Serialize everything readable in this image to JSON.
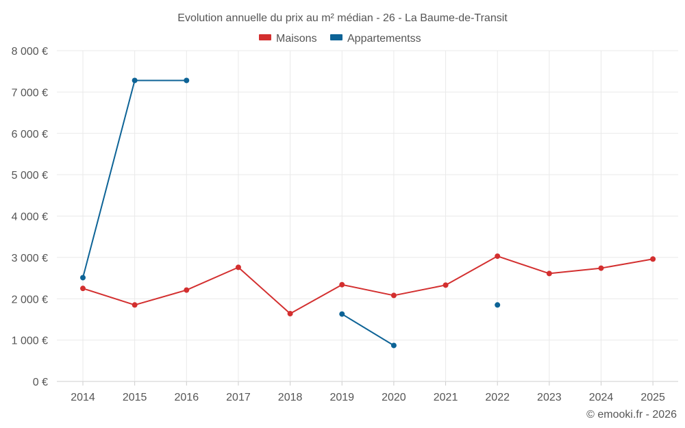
{
  "chart_data": {
    "type": "line",
    "title": "Evolution annuelle du prix au m² médian - 26 - La Baume-de-Transit",
    "categories": [
      "2014",
      "2015",
      "2016",
      "2017",
      "2018",
      "2019",
      "2020",
      "2021",
      "2022",
      "2023",
      "2024",
      "2025"
    ],
    "ylim": [
      0,
      8000
    ],
    "yticks": [
      0,
      1000,
      2000,
      3000,
      4000,
      5000,
      6000,
      7000,
      8000
    ],
    "ytick_labels": [
      "0 €",
      "1 000 €",
      "2 000 €",
      "3 000 €",
      "4 000 €",
      "5 000 €",
      "6 000 €",
      "7 000 €",
      "8 000 €"
    ],
    "xlabel": "",
    "ylabel": "",
    "grid": true,
    "legend_position": "top-center",
    "series": [
      {
        "name": "Maisons",
        "color": "#d32f2f",
        "values": [
          2250,
          1850,
          2210,
          2760,
          1640,
          2340,
          2080,
          2330,
          3030,
          2610,
          2740,
          2960
        ]
      },
      {
        "name": "Appartementss",
        "color": "#0d6396",
        "values": [
          2510,
          7280,
          7280,
          null,
          null,
          1630,
          870,
          null,
          1850,
          null,
          null,
          null
        ]
      }
    ]
  },
  "credit": "© emooki.fr - 2026"
}
